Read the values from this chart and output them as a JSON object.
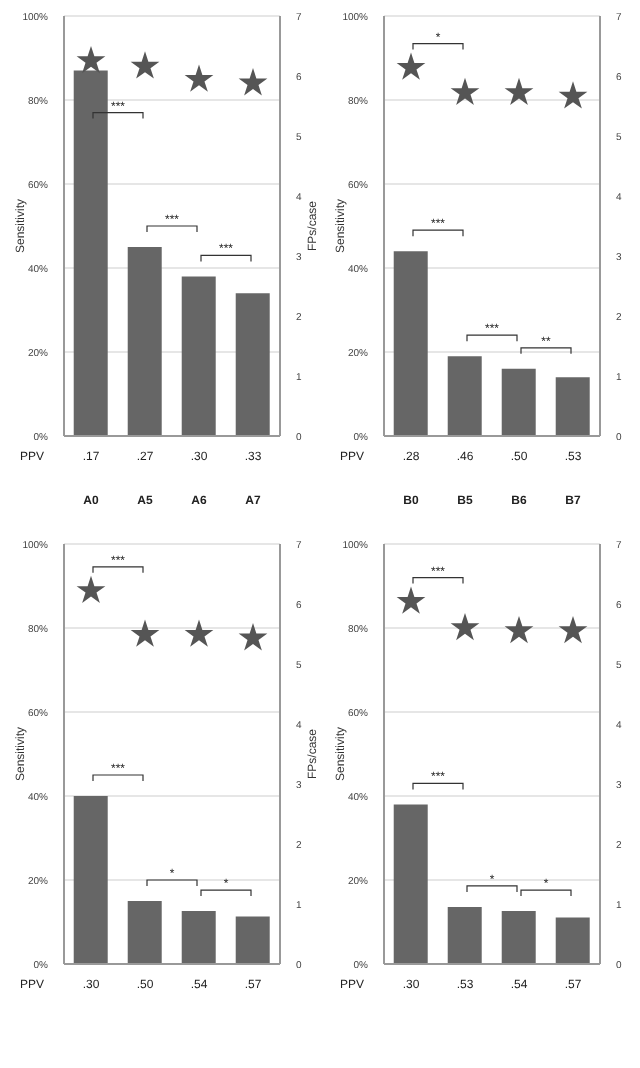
{
  "chart_data": [
    {
      "type": "bar",
      "categories": [
        "A0",
        "A5",
        "A6",
        "A7"
      ],
      "ylabel": "Sensitivity",
      "y2label": "FPs/case",
      "ylim": [
        0,
        1
      ],
      "yticks": [
        {
          "value": 0,
          "label": "0%"
        },
        {
          "value": 0.2,
          "label": "20%"
        },
        {
          "value": 0.4,
          "label": "40%"
        },
        {
          "value": 0.6,
          "label": "60%"
        },
        {
          "value": 0.8,
          "label": "80%"
        },
        {
          "value": 1,
          "label": "100%"
        }
      ],
      "y2lim": [
        0,
        7
      ],
      "y2ticks": [
        0,
        1,
        2,
        3,
        4,
        5,
        6,
        7
      ],
      "grid": "y",
      "series": [
        {
          "type": "bar",
          "color": "#666666",
          "values": [
            0.87,
            0.45,
            0.38,
            0.34
          ]
        },
        {
          "type": "scatter",
          "axis": "y2",
          "marker": "star",
          "color": "#555555",
          "values": [
            6.25,
            6.16,
            5.94,
            5.88
          ]
        }
      ],
      "annotations": [
        "PPV",
        ".17",
        ".27",
        ".30",
        ".33",
        "***",
        "***",
        "***"
      ]
    },
    {
      "type": "bar",
      "categories": [
        "B0",
        "B5",
        "B6",
        "B7"
      ],
      "ylabel": "Sensitivity",
      "ylim": [
        0,
        1
      ],
      "yticks": [
        {
          "value": 0,
          "label": "0%"
        },
        {
          "value": 0.2,
          "label": "20%"
        },
        {
          "value": 0.4,
          "label": "40%"
        },
        {
          "value": 0.6,
          "label": "60%"
        },
        {
          "value": 0.8,
          "label": "80%"
        },
        {
          "value": 1,
          "label": "100%"
        }
      ],
      "y2lim": [
        0,
        7
      ],
      "y2ticks": [
        0,
        1,
        2,
        3,
        4,
        5,
        6,
        7
      ],
      "grid": "y",
      "series": [
        {
          "type": "bar",
          "color": "#666666",
          "values": [
            0.44,
            0.19,
            0.16,
            0.14
          ]
        },
        {
          "type": "scatter",
          "axis": "y2",
          "marker": "star",
          "color": "#555555",
          "values": [
            6.14,
            5.72,
            5.72,
            5.66
          ]
        }
      ],
      "annotations": [
        "PPV",
        ".28",
        ".46",
        ".50",
        ".53",
        "*",
        "***",
        "***",
        "**"
      ]
    },
    {
      "type": "bar",
      "categories": [
        null,
        null,
        null,
        null
      ],
      "ylabel": "Sensitivity",
      "y2label": "FPs/case",
      "ylim": [
        0,
        1
      ],
      "yticks": [
        {
          "value": 0,
          "label": "0%"
        },
        {
          "value": 0.2,
          "label": "20%"
        },
        {
          "value": 0.4,
          "label": "40%"
        },
        {
          "value": 0.6,
          "label": "60%"
        },
        {
          "value": 0.8,
          "label": "80%"
        },
        {
          "value": 1,
          "label": "100%"
        }
      ],
      "y2lim": [
        0,
        7
      ],
      "y2ticks": [
        0,
        1,
        2,
        3,
        4,
        5,
        6,
        7
      ],
      "grid": "y",
      "series": [
        {
          "type": "bar",
          "color": "#666666",
          "values": [
            0.4,
            0.15,
            0.126,
            0.113
          ]
        },
        {
          "type": "scatter",
          "axis": "y2",
          "marker": "star",
          "color": "#555555",
          "values": [
            6.22,
            5.49,
            5.49,
            5.43
          ]
        }
      ],
      "annotations": [
        "PPV",
        ".30",
        ".50",
        ".54",
        ".57",
        "***",
        "***",
        "*",
        "*"
      ]
    },
    {
      "type": "bar",
      "categories": [
        null,
        null,
        null,
        null
      ],
      "ylabel": "Sensitivity",
      "ylim": [
        0,
        1
      ],
      "yticks": [
        {
          "value": 0,
          "label": "0%"
        },
        {
          "value": 0.2,
          "label": "20%"
        },
        {
          "value": 0.4,
          "label": "40%"
        },
        {
          "value": 0.6,
          "label": "60%"
        },
        {
          "value": 0.8,
          "label": "80%"
        },
        {
          "value": 1,
          "label": "100%"
        }
      ],
      "y2lim": [
        0,
        7
      ],
      "y2ticks": [
        0,
        1,
        2,
        3,
        4,
        5,
        6,
        7
      ],
      "grid": "y",
      "series": [
        {
          "type": "bar",
          "color": "#666666",
          "values": [
            0.38,
            0.136,
            0.126,
            0.111
          ]
        },
        {
          "type": "scatter",
          "axis": "y2",
          "marker": "star",
          "color": "#555555",
          "values": [
            6.04,
            5.6,
            5.55,
            5.55
          ]
        }
      ],
      "annotations": [
        "PPV",
        ".30",
        ".53",
        ".54",
        ".57",
        "***",
        "***",
        "*",
        "*"
      ]
    }
  ]
}
